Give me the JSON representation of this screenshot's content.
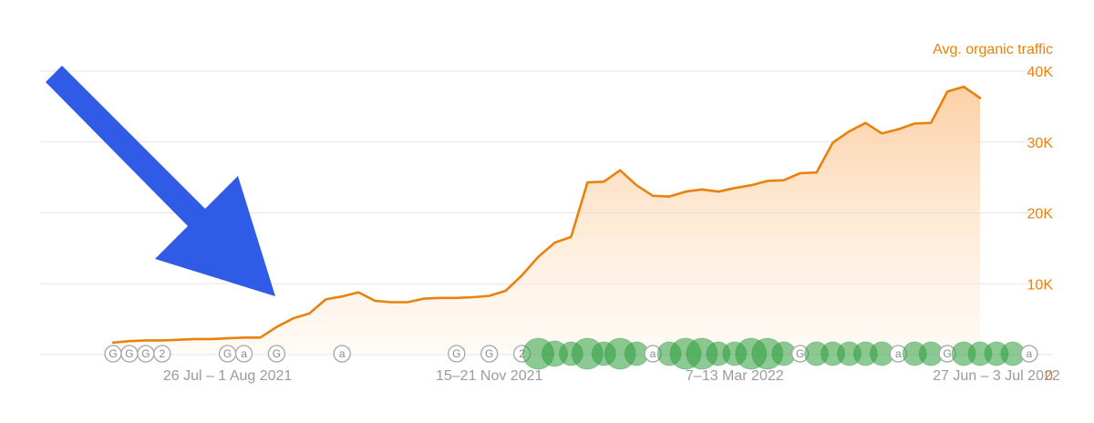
{
  "chart_data": {
    "type": "area",
    "title": "",
    "xlabel": "",
    "ylabel": "Avg. organic traffic",
    "ylim": [
      0,
      40000
    ],
    "y_ticks": [
      {
        "value": 0,
        "label": "0"
      },
      {
        "value": 10000,
        "label": "10K"
      },
      {
        "value": 20000,
        "label": "20K"
      },
      {
        "value": 30000,
        "label": "30K"
      },
      {
        "value": 40000,
        "label": "40K"
      }
    ],
    "x_ticks": [
      {
        "index": 7,
        "label": "26 Jul – 1 Aug 2021"
      },
      {
        "index": 23,
        "label": "15–21 Nov 2021"
      },
      {
        "index": 38,
        "label": "7–13 Mar 2022"
      },
      {
        "index": 54,
        "label": "27 Jun – 3 Jul 2022"
      }
    ],
    "grid": true,
    "colors": {
      "line": "#e8820c",
      "fill": "#fcd9b0",
      "grid": "#e5e5e5",
      "marker_green": "#2e9d3e",
      "marker_grey": "#9b9b9b"
    },
    "series": [
      {
        "name": "Avg. organic traffic",
        "values": [
          1700,
          1900,
          2000,
          2000,
          2100,
          2200,
          2200,
          2300,
          2400,
          2400,
          3900,
          5100,
          5800,
          7800,
          8200,
          8800,
          7600,
          7400,
          7400,
          7900,
          8000,
          8000,
          8100,
          8300,
          9000,
          11200,
          13800,
          15800,
          16600,
          24300,
          24400,
          26000,
          23900,
          22400,
          22300,
          23000,
          23300,
          23000,
          23500,
          23900,
          24500,
          24600,
          25600,
          25700,
          29900,
          31500,
          32700,
          31200,
          31800,
          32600,
          32700,
          37100,
          37800,
          36200
        ]
      }
    ],
    "event_markers": [
      {
        "index": 0,
        "kind": "grey",
        "letter": "G"
      },
      {
        "index": 1,
        "kind": "grey",
        "letter": "G"
      },
      {
        "index": 2,
        "kind": "grey",
        "letter": "G"
      },
      {
        "index": 3,
        "kind": "grey",
        "letter": "2"
      },
      {
        "index": 7,
        "kind": "grey",
        "letter": "G"
      },
      {
        "index": 8,
        "kind": "grey",
        "letter": "a"
      },
      {
        "index": 10,
        "kind": "grey",
        "letter": "G"
      },
      {
        "index": 14,
        "kind": "grey",
        "letter": "a"
      },
      {
        "index": 21,
        "kind": "grey",
        "letter": "G"
      },
      {
        "index": 23,
        "kind": "grey",
        "letter": "G"
      },
      {
        "index": 25,
        "kind": "grey",
        "letter": "2"
      },
      {
        "index": 26,
        "kind": "green",
        "size": 17
      },
      {
        "index": 27,
        "kind": "green",
        "size": 14
      },
      {
        "index": 28,
        "kind": "green",
        "size": 13
      },
      {
        "index": 29,
        "kind": "green",
        "size": 17
      },
      {
        "index": 30,
        "kind": "green",
        "size": 13
      },
      {
        "index": 31,
        "kind": "green",
        "size": 17
      },
      {
        "index": 32,
        "kind": "green",
        "size": 13
      },
      {
        "index": 33,
        "kind": "grey",
        "letter": "a"
      },
      {
        "index": 34,
        "kind": "green",
        "size": 13
      },
      {
        "index": 35,
        "kind": "green",
        "size": 17
      },
      {
        "index": 36,
        "kind": "green",
        "size": 17
      },
      {
        "index": 37,
        "kind": "green",
        "size": 13
      },
      {
        "index": 38,
        "kind": "green",
        "size": 13
      },
      {
        "index": 39,
        "kind": "green",
        "size": 17
      },
      {
        "index": 40,
        "kind": "green",
        "size": 17
      },
      {
        "index": 41,
        "kind": "green",
        "size": 13
      },
      {
        "index": 42,
        "kind": "grey",
        "letter": "G"
      },
      {
        "index": 43,
        "kind": "green",
        "size": 13
      },
      {
        "index": 44,
        "kind": "green",
        "size": 13
      },
      {
        "index": 45,
        "kind": "green",
        "size": 13
      },
      {
        "index": 46,
        "kind": "green",
        "size": 13
      },
      {
        "index": 47,
        "kind": "green",
        "size": 13
      },
      {
        "index": 48,
        "kind": "grey",
        "letter": "a"
      },
      {
        "index": 49,
        "kind": "green",
        "size": 13
      },
      {
        "index": 50,
        "kind": "green",
        "size": 13
      },
      {
        "index": 51,
        "kind": "grey",
        "letter": "G"
      },
      {
        "index": 52,
        "kind": "green",
        "size": 13
      },
      {
        "index": 53,
        "kind": "green",
        "size": 13
      },
      {
        "index": 54,
        "kind": "green",
        "size": 13
      },
      {
        "index": 55,
        "kind": "green",
        "size": 13
      },
      {
        "index": 56,
        "kind": "grey",
        "letter": "a"
      }
    ],
    "annotation": {
      "type": "arrow",
      "color": "#2f5be6"
    }
  }
}
